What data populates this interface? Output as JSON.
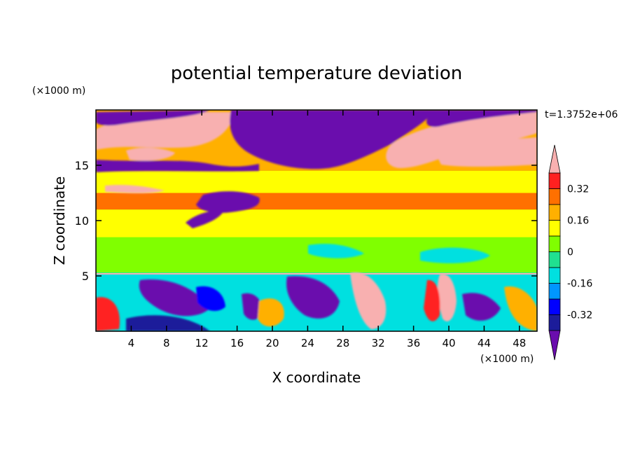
{
  "chart_data": {
    "type": "heatmap",
    "title": "potential temperature deviation",
    "xlabel": "X coordinate",
    "ylabel": "Z coordinate",
    "x_unit": "(×1000 m)",
    "y_unit": "(×1000 m)",
    "time_label": "t=1.3752e+06",
    "xlim": [
      0,
      50
    ],
    "ylim": [
      0,
      20
    ],
    "x_ticks": [
      "4",
      "8",
      "12",
      "16",
      "20",
      "24",
      "28",
      "32",
      "36",
      "40",
      "44",
      "48"
    ],
    "y_ticks": [
      "5",
      "10",
      "15"
    ],
    "colorbar": {
      "labels": [
        "0.32",
        "0.16",
        "0",
        "-0.16",
        "-0.32"
      ],
      "label_values": [
        0.32,
        0.16,
        0,
        -0.16,
        -0.32
      ],
      "levels": [
        -0.4,
        -0.32,
        -0.24,
        -0.16,
        -0.08,
        0,
        0.08,
        0.16,
        0.24,
        0.32,
        0.4
      ],
      "colors": [
        "#6a0dad",
        "#1c1c9a",
        "#0000ff",
        "#0096ff",
        "#00e0e0",
        "#20e090",
        "#80ff00",
        "#ffff00",
        "#ffb000",
        "#ff7000",
        "#ff2020",
        "#f8b0b0"
      ],
      "extend": "both"
    },
    "bands": [
      {
        "z": [
          0,
          5.3
        ],
        "value": -0.1,
        "description": "turbulent boundary layer with mixed extremes"
      },
      {
        "z": [
          5.3,
          8.5
        ],
        "value": 0.05
      },
      {
        "z": [
          8.5,
          11
        ],
        "value": 0.12
      },
      {
        "z": [
          11,
          12.5
        ],
        "value": 0.28
      },
      {
        "z": [
          12.5,
          14.5
        ],
        "value": 0.08
      },
      {
        "z": [
          14.5,
          20
        ],
        "value": 0.2,
        "description": "upper layer with large positive (pink) and negative (purple) patches"
      }
    ]
  }
}
